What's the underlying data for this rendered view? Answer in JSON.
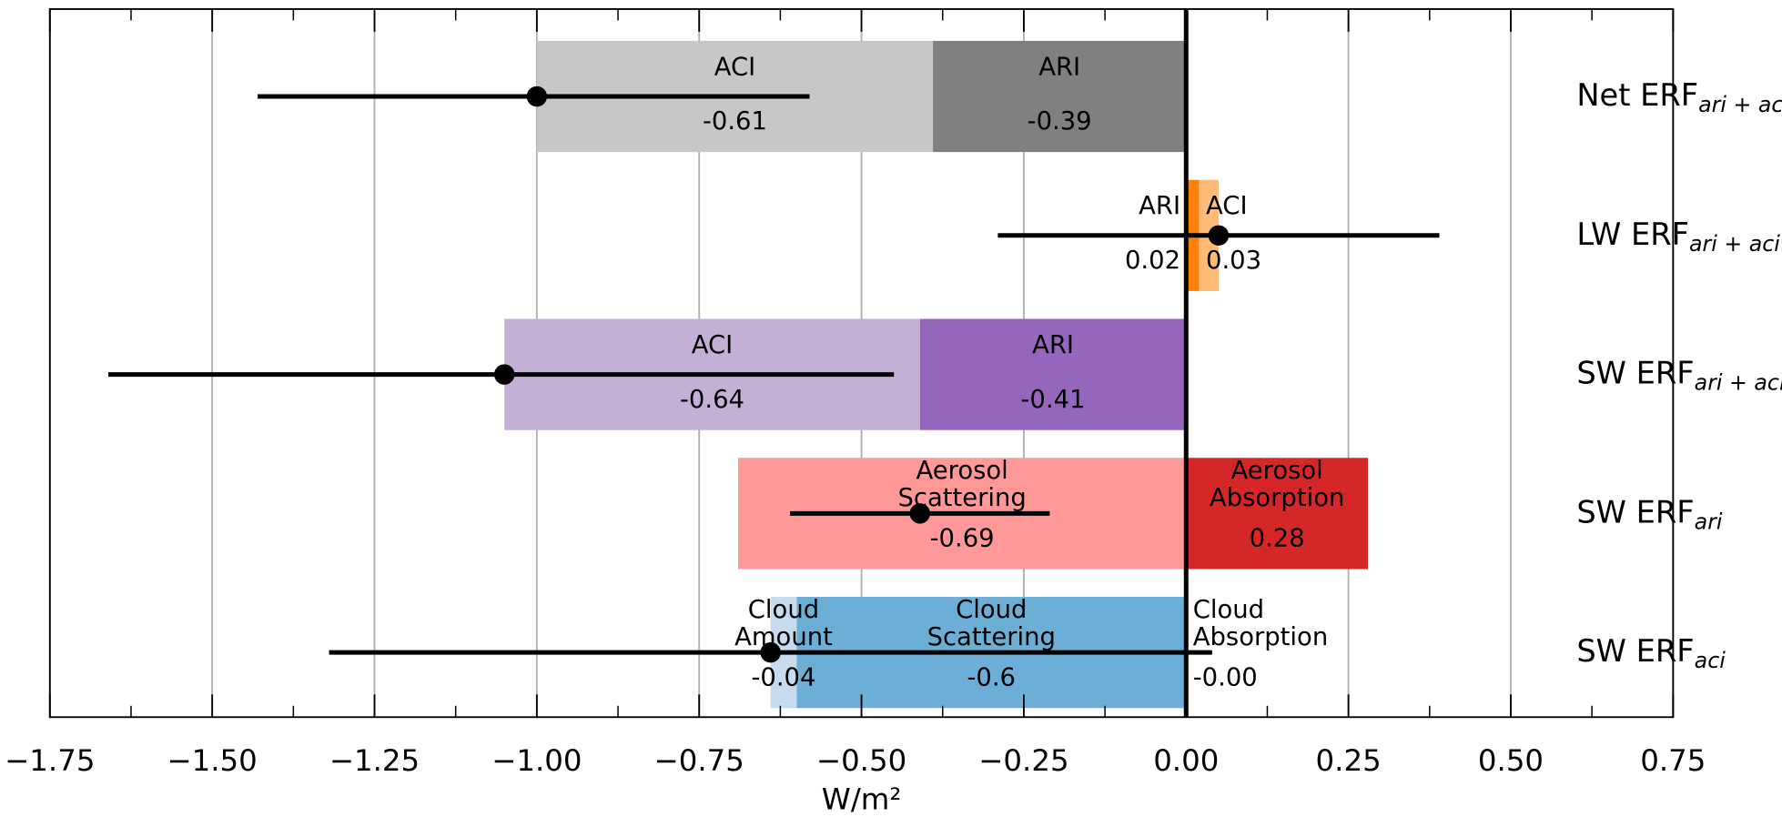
{
  "chart_data": {
    "type": "stacked_barh",
    "xlabel": "W/m²",
    "xlim": [
      -1.75,
      0.75
    ],
    "xticks": [
      {
        "value": -1.75,
        "label": "−1.75"
      },
      {
        "value": -1.5,
        "label": "−1.50"
      },
      {
        "value": -1.25,
        "label": "−1.25"
      },
      {
        "value": -1.0,
        "label": "−1.00"
      },
      {
        "value": -0.75,
        "label": "−0.75"
      },
      {
        "value": -0.5,
        "label": "−0.50"
      },
      {
        "value": -0.25,
        "label": "−0.25"
      },
      {
        "value": 0,
        "label": "0.00"
      },
      0.25,
      {
        "value": 0.5,
        "label": "0.50"
      },
      0.75
    ],
    "xminorticks": [
      -1.625,
      -1.375,
      -1.125,
      -0.875,
      -0.625,
      -0.375,
      -0.125,
      0.125,
      0.375,
      0.625
    ],
    "grid": true,
    "rows": [
      {
        "name": "Net ERF",
        "subscript": "ari + aci",
        "mean": -1.0,
        "range": [
          -1.43,
          -0.58
        ],
        "segments": [
          {
            "name": "ARI",
            "value": -0.39,
            "color": "#808080"
          },
          {
            "name": "ACI",
            "value": -0.61,
            "color": "#c7c7c7"
          }
        ]
      },
      {
        "name": "LW ERF",
        "subscript": "ari + aci",
        "mean": 0.05,
        "range": [
          -0.29,
          0.39
        ],
        "segments": [
          {
            "name": "ARI",
            "value": 0.02,
            "color": "#ff7f0e"
          },
          {
            "name": "ACI",
            "value": 0.03,
            "color": "#ffbb78"
          }
        ]
      },
      {
        "name": "SW ERF",
        "subscript": "ari + aci",
        "mean": -1.05,
        "range": [
          -1.66,
          -0.45
        ],
        "segments": [
          {
            "name": "ARI",
            "value": -0.41,
            "color": "#9467bd"
          },
          {
            "name": "ACI",
            "value": -0.64,
            "color": "#c5b0d5"
          }
        ]
      },
      {
        "name": "SW ERF",
        "subscript": "ari",
        "mean": -0.41,
        "range": [
          -0.61,
          -0.21
        ],
        "segments": [
          {
            "name": "Aerosol Scattering",
            "value": -0.69,
            "color": "#ff9896"
          },
          {
            "name": "Aerosol Absorption",
            "value": 0.28,
            "color": "#d62728"
          }
        ]
      },
      {
        "name": "SW ERF",
        "subscript": "aci",
        "mean": -0.64,
        "range": [
          -1.32,
          0.04
        ],
        "segments": [
          {
            "name": "Cloud Scattering",
            "value": -0.6,
            "color": "#6baed6"
          },
          {
            "name": "Cloud Amount",
            "value": -0.04,
            "color": "#c6dbef"
          },
          {
            "name": "Cloud Absorption",
            "value": 0,
            "value_label": "-0.00",
            "color": "#9ecae1"
          }
        ]
      }
    ]
  }
}
